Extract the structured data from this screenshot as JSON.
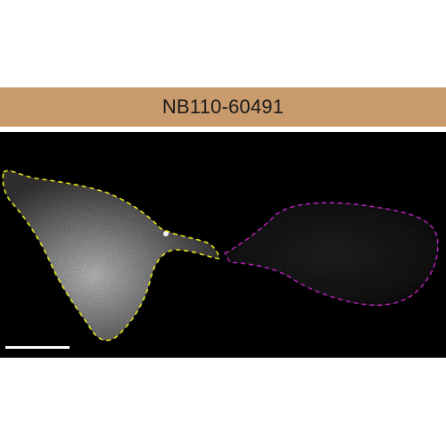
{
  "antibody_label": "NB110-60491",
  "colors": {
    "label_bar_bg": "#c99a6c",
    "label_text": "#1a1a1a",
    "image_bg": "#000000",
    "outline_left_cell": "#e6e617",
    "outline_right_cell": "#b01fb0",
    "scale_bar": "#ffffff"
  }
}
